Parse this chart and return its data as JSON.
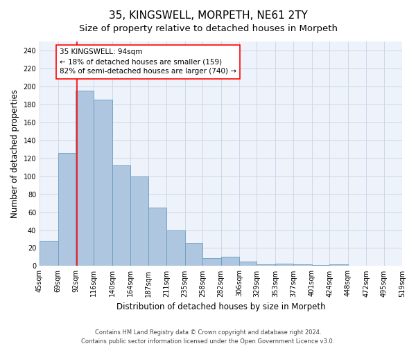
{
  "title": "35, KINGSWELL, MORPETH, NE61 2TY",
  "subtitle": "Size of property relative to detached houses in Morpeth",
  "xlabel": "Distribution of detached houses by size in Morpeth",
  "ylabel": "Number of detached properties",
  "bar_heights": [
    28,
    126,
    195,
    185,
    112,
    100,
    65,
    40,
    26,
    9,
    10,
    5,
    2,
    3,
    2,
    1,
    2,
    0,
    0,
    0
  ],
  "bin_left": [
    45,
    69,
    92,
    116,
    140,
    164,
    187,
    211,
    235,
    258,
    282,
    306,
    329,
    353,
    377,
    401,
    424,
    448,
    472,
    495
  ],
  "bin_right": [
    69,
    92,
    116,
    140,
    164,
    187,
    211,
    235,
    258,
    282,
    306,
    329,
    353,
    377,
    401,
    424,
    448,
    472,
    495,
    519
  ],
  "tick_labels": [
    "45sqm",
    "69sqm",
    "92sqm",
    "116sqm",
    "140sqm",
    "164sqm",
    "187sqm",
    "211sqm",
    "235sqm",
    "258sqm",
    "282sqm",
    "306sqm",
    "329sqm",
    "353sqm",
    "377sqm",
    "401sqm",
    "424sqm",
    "448sqm",
    "472sqm",
    "495sqm",
    "519sqm"
  ],
  "tick_positions": [
    45,
    69,
    92,
    116,
    140,
    164,
    187,
    211,
    235,
    258,
    282,
    306,
    329,
    353,
    377,
    401,
    424,
    448,
    472,
    495,
    519
  ],
  "bar_color": "#aec6e0",
  "bar_edge_color": "#6a9cbf",
  "property_line_x": 94,
  "property_line_color": "red",
  "annotation_text": "35 KINGSWELL: 94sqm\n← 18% of detached houses are smaller (159)\n82% of semi-detached houses are larger (740) →",
  "annotation_box_color": "white",
  "annotation_box_edge_color": "red",
  "ylim": [
    0,
    250
  ],
  "yticks": [
    0,
    20,
    40,
    60,
    80,
    100,
    120,
    140,
    160,
    180,
    200,
    220,
    240
  ],
  "grid_color": "#ccd8ea",
  "background_color": "#eef2fa",
  "footer_line1": "Contains HM Land Registry data © Crown copyright and database right 2024.",
  "footer_line2": "Contains public sector information licensed under the Open Government Licence v3.0.",
  "title_fontsize": 11,
  "subtitle_fontsize": 9.5,
  "axis_label_fontsize": 8.5,
  "tick_fontsize": 7,
  "annotation_fontsize": 7.5,
  "footer_fontsize": 6
}
